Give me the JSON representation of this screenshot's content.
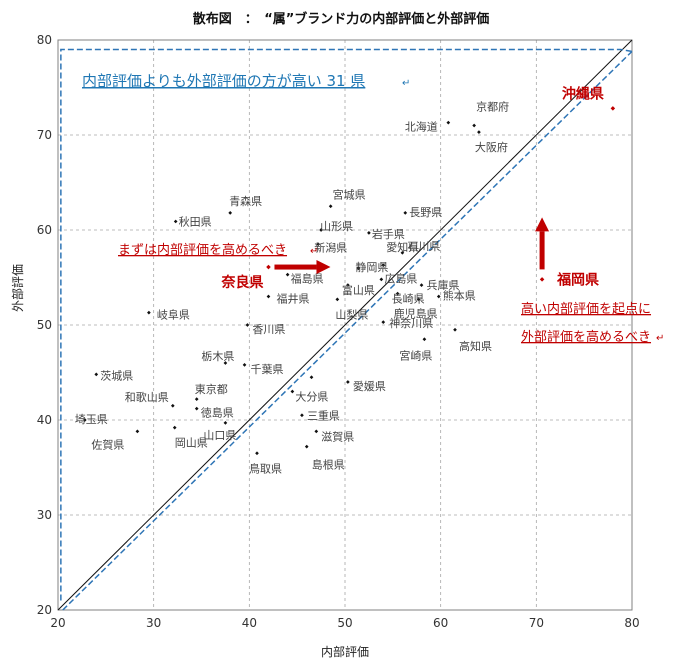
{
  "chart_data": {
    "type": "scatter",
    "title": "散布図　：　“属”ブランド力の内部評価と外部評価",
    "xlabel": "内部評価",
    "ylabel": "外部評価",
    "xlim": [
      20,
      80
    ],
    "ylim": [
      20,
      80
    ],
    "x_ticks": [
      20,
      30,
      40,
      50,
      60,
      70,
      80
    ],
    "y_ticks": [
      20,
      30,
      40,
      50,
      60,
      70,
      80
    ],
    "grid": "dashed",
    "points": [
      {
        "label": "北海道",
        "x": 60.8,
        "y": 71.3
      },
      {
        "label": "京都府",
        "x": 63.5,
        "y": 71.0
      },
      {
        "label": "大阪府",
        "x": 64.0,
        "y": 70.3
      },
      {
        "label": "沖縄県",
        "x": 78.0,
        "y": 72.8
      },
      {
        "label": "青森県",
        "x": 38.0,
        "y": 61.8
      },
      {
        "label": "宮城県",
        "x": 48.5,
        "y": 62.5
      },
      {
        "label": "秋田県",
        "x": 32.3,
        "y": 60.9
      },
      {
        "label": "長野県",
        "x": 56.3,
        "y": 61.8
      },
      {
        "label": "山形県",
        "x": 47.5,
        "y": 60.0
      },
      {
        "label": "岩手県",
        "x": 52.5,
        "y": 59.7
      },
      {
        "label": "新潟県",
        "x": 47.2,
        "y": 58.5
      },
      {
        "label": "石川県",
        "x": 56.0,
        "y": 57.6
      },
      {
        "label": "静岡県",
        "x": 51.4,
        "y": 56.0
      },
      {
        "label": "愛知県",
        "x": 54.0,
        "y": 56.3
      },
      {
        "label": "奈良県",
        "x": 42.0,
        "y": 56.1
      },
      {
        "label": "福島県",
        "x": 44.0,
        "y": 55.3
      },
      {
        "label": "富山県",
        "x": 50.3,
        "y": 54.2
      },
      {
        "label": "広島県",
        "x": 53.8,
        "y": 54.8
      },
      {
        "label": "兵庫県",
        "x": 58.0,
        "y": 54.2
      },
      {
        "label": "福岡県",
        "x": 70.6,
        "y": 54.8
      },
      {
        "label": "福井県",
        "x": 42.0,
        "y": 53.0
      },
      {
        "label": "長崎県",
        "x": 55.5,
        "y": 53.3
      },
      {
        "label": "熊本県",
        "x": 59.8,
        "y": 53.0
      },
      {
        "label": "山梨県",
        "x": 49.2,
        "y": 52.7
      },
      {
        "label": "鹿児島県",
        "x": 57.7,
        "y": 52.7
      },
      {
        "label": "岐阜県",
        "x": 29.5,
        "y": 51.3
      },
      {
        "label": "神奈川県",
        "x": 54.0,
        "y": 50.3
      },
      {
        "label": "香川県",
        "x": 39.8,
        "y": 50.0
      },
      {
        "label": "高知県",
        "x": 61.5,
        "y": 49.5
      },
      {
        "label": "宮崎県",
        "x": 58.3,
        "y": 48.5
      },
      {
        "label": "栃木県",
        "x": 37.5,
        "y": 46.0
      },
      {
        "label": "千葉県",
        "x": 39.5,
        "y": 45.8
      },
      {
        "label": "静岡県_dup",
        "x": 46.5,
        "y": 44.5
      },
      {
        "label": "茨城県",
        "x": 24.0,
        "y": 44.8
      },
      {
        "label": "愛媛県",
        "x": 50.3,
        "y": 44.0
      },
      {
        "label": "大分県",
        "x": 44.5,
        "y": 43.0
      },
      {
        "label": "東京都",
        "x": 34.5,
        "y": 42.2
      },
      {
        "label": "和歌山県",
        "x": 32.0,
        "y": 41.5
      },
      {
        "label": "徳島県",
        "x": 34.5,
        "y": 41.2
      },
      {
        "label": "三重県",
        "x": 45.5,
        "y": 40.5
      },
      {
        "label": "埼玉県",
        "x": 22.8,
        "y": 40.0
      },
      {
        "label": "山口県",
        "x": 37.5,
        "y": 39.7
      },
      {
        "label": "佐賀県",
        "x": 28.3,
        "y": 38.8
      },
      {
        "label": "岡山県",
        "x": 32.2,
        "y": 39.2
      },
      {
        "label": "滋賀県",
        "x": 47.0,
        "y": 38.8
      },
      {
        "label": "島根県",
        "x": 46.0,
        "y": 37.2
      },
      {
        "label": "鳥取県",
        "x": 40.8,
        "y": 36.5
      }
    ],
    "annotations": {
      "upper_region": "内部評価よりも外部評価の方が高い 31 県",
      "nara_note": "まずは内部評価を高めるべき",
      "fukuoka_note_1": "高い内部評価を起点に",
      "fukuoka_note_2": "外部評価を高めるべき",
      "return_mark": "↵"
    },
    "colors": {
      "point": "#111111",
      "highlight": "#c00000",
      "blue": "#1f77b4",
      "grid": "#a6a6a6",
      "diagonal": "#111111",
      "dashed_guide": "#2e75b6"
    },
    "highlight_labels": [
      "奈良県",
      "福岡県",
      "沖縄県"
    ]
  }
}
